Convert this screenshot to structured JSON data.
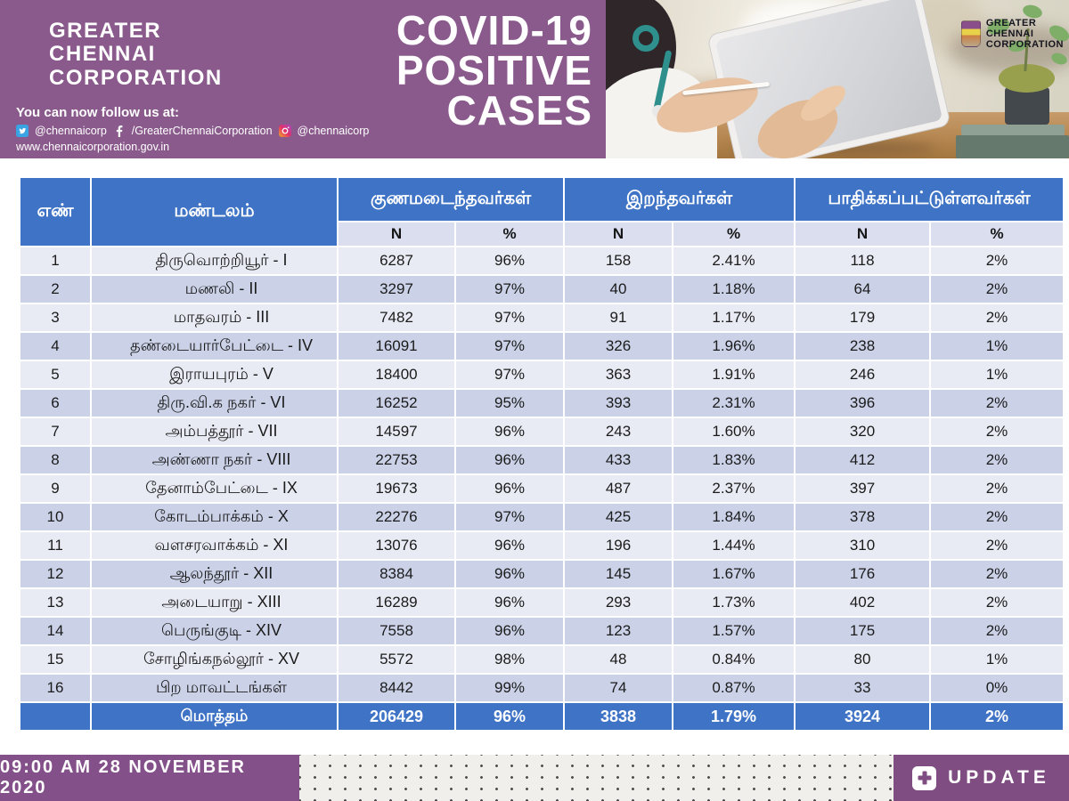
{
  "header": {
    "org": {
      "line1": "GREATER",
      "line2": "CHENNAI",
      "line3": "CORPORATION"
    },
    "title": {
      "line1": "COVID-19",
      "line2": "POSITIVE",
      "line3": "CASES"
    },
    "follow_text": "You can now follow us at:",
    "twitter_handle": "@chennaicorp",
    "facebook_handle": "/GreaterChennaiCorporation",
    "instagram_handle": "@chennaicorp",
    "website": "www.chennaicorporation.gov.in",
    "photo_logo": {
      "line1": "GREATER",
      "line2": "CHENNAI",
      "line3": "CORPORATION"
    }
  },
  "table": {
    "headers": {
      "no": "எண்",
      "zone": "மண்டலம்",
      "recovered": "குணமடைந்தவர்கள்",
      "deaths": "இறந்தவர்கள்",
      "affected": "பாதிக்கப்பட்டுள்ளவர்கள்",
      "n": "N",
      "pct": "%"
    },
    "rows": [
      {
        "no": "1",
        "zone": "திருவொற்றியூர் - I",
        "recovered_n": "6287",
        "recovered_pct": "96%",
        "deaths_n": "158",
        "deaths_pct": "2.41%",
        "affected_n": "118",
        "affected_pct": "2%"
      },
      {
        "no": "2",
        "zone": "மணலி - II",
        "recovered_n": "3297",
        "recovered_pct": "97%",
        "deaths_n": "40",
        "deaths_pct": "1.18%",
        "affected_n": "64",
        "affected_pct": "2%"
      },
      {
        "no": "3",
        "zone": "மாதவரம் - III",
        "recovered_n": "7482",
        "recovered_pct": "97%",
        "deaths_n": "91",
        "deaths_pct": "1.17%",
        "affected_n": "179",
        "affected_pct": "2%"
      },
      {
        "no": "4",
        "zone": "தண்டையார்பேட்டை - IV",
        "recovered_n": "16091",
        "recovered_pct": "97%",
        "deaths_n": "326",
        "deaths_pct": "1.96%",
        "affected_n": "238",
        "affected_pct": "1%"
      },
      {
        "no": "5",
        "zone": "இராயபுரம் - V",
        "recovered_n": "18400",
        "recovered_pct": "97%",
        "deaths_n": "363",
        "deaths_pct": "1.91%",
        "affected_n": "246",
        "affected_pct": "1%"
      },
      {
        "no": "6",
        "zone": "திரு.வி.க நகர் - VI",
        "recovered_n": "16252",
        "recovered_pct": "95%",
        "deaths_n": "393",
        "deaths_pct": "2.31%",
        "affected_n": "396",
        "affected_pct": "2%"
      },
      {
        "no": "7",
        "zone": "அம்பத்தூர் - VII",
        "recovered_n": "14597",
        "recovered_pct": "96%",
        "deaths_n": "243",
        "deaths_pct": "1.60%",
        "affected_n": "320",
        "affected_pct": "2%"
      },
      {
        "no": "8",
        "zone": "அண்ணா நகர் - VIII",
        "recovered_n": "22753",
        "recovered_pct": "96%",
        "deaths_n": "433",
        "deaths_pct": "1.83%",
        "affected_n": "412",
        "affected_pct": "2%"
      },
      {
        "no": "9",
        "zone": "தேனாம்பேட்டை - IX",
        "recovered_n": "19673",
        "recovered_pct": "96%",
        "deaths_n": "487",
        "deaths_pct": "2.37%",
        "affected_n": "397",
        "affected_pct": "2%"
      },
      {
        "no": "10",
        "zone": "கோடம்பாக்கம் - X",
        "recovered_n": "22276",
        "recovered_pct": "97%",
        "deaths_n": "425",
        "deaths_pct": "1.84%",
        "affected_n": "378",
        "affected_pct": "2%"
      },
      {
        "no": "11",
        "zone": "வளசரவாக்கம் - XI",
        "recovered_n": "13076",
        "recovered_pct": "96%",
        "deaths_n": "196",
        "deaths_pct": "1.44%",
        "affected_n": "310",
        "affected_pct": "2%"
      },
      {
        "no": "12",
        "zone": "ஆலந்தூர் - XII",
        "recovered_n": "8384",
        "recovered_pct": "96%",
        "deaths_n": "145",
        "deaths_pct": "1.67%",
        "affected_n": "176",
        "affected_pct": "2%"
      },
      {
        "no": "13",
        "zone": "அடையாறு - XIII",
        "recovered_n": "16289",
        "recovered_pct": "96%",
        "deaths_n": "293",
        "deaths_pct": "1.73%",
        "affected_n": "402",
        "affected_pct": "2%"
      },
      {
        "no": "14",
        "zone": "பெருங்குடி - XIV",
        "recovered_n": "7558",
        "recovered_pct": "96%",
        "deaths_n": "123",
        "deaths_pct": "1.57%",
        "affected_n": "175",
        "affected_pct": "2%"
      },
      {
        "no": "15",
        "zone": "சோழிங்கநல்லூர் - XV",
        "recovered_n": "5572",
        "recovered_pct": "98%",
        "deaths_n": "48",
        "deaths_pct": "0.84%",
        "affected_n": "80",
        "affected_pct": "1%"
      },
      {
        "no": "16",
        "zone": "பிற மாவட்டங்கள்",
        "recovered_n": "8442",
        "recovered_pct": "99%",
        "deaths_n": "74",
        "deaths_pct": "0.87%",
        "affected_n": "33",
        "affected_pct": "0%"
      }
    ],
    "total": {
      "label": "மொத்தம்",
      "recovered_n": "206429",
      "recovered_pct": "96%",
      "deaths_n": "3838",
      "deaths_pct": "1.79%",
      "affected_n": "3924",
      "affected_pct": "2%"
    }
  },
  "footer": {
    "timestamp": "09:00 AM 28 NOVEMBER 2020",
    "update_label": "UPDATE"
  },
  "colors": {
    "banner_purple": "#8a5a8c",
    "footer_purple": "#7f4d81",
    "table_blue": "#3e73c6",
    "row_light": "#e9ebf4",
    "row_dark": "#cbd2e8",
    "subheader_bg": "#dadeee"
  }
}
